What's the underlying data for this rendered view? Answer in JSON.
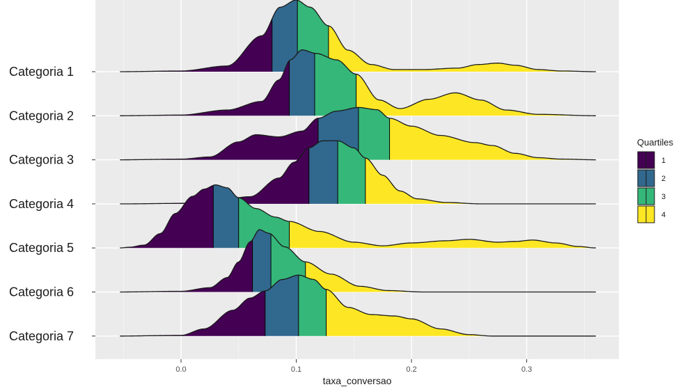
{
  "chart_data": {
    "type": "ridgeline",
    "xlabel": "taxa_conversao",
    "xlim": [
      -0.06,
      0.36
    ],
    "xticks": [
      0.0,
      0.1,
      0.2,
      0.3
    ],
    "xtick_labels": [
      "0.0",
      "0.1",
      "0.2",
      "0.3"
    ],
    "grid": true,
    "legend": {
      "title": "Quartiles",
      "position": "right",
      "items": [
        {
          "label": "1",
          "color": "#440154"
        },
        {
          "label": "2",
          "color": "#31688E"
        },
        {
          "label": "3",
          "color": "#35B779"
        },
        {
          "label": "4",
          "color": "#FDE725"
        }
      ]
    },
    "categories": [
      "Categoria 1",
      "Categoria 2",
      "Categoria 3",
      "Categoria 4",
      "Categoria 5",
      "Categoria 6",
      "Categoria 7"
    ],
    "series": [
      {
        "name": "Categoria 1",
        "quartiles": [
          0.079,
          0.101,
          0.128
        ],
        "density": [
          [
            -0.053,
            0
          ],
          [
            0.0,
            0.01
          ],
          [
            0.04,
            0.08
          ],
          [
            0.07,
            0.5
          ],
          [
            0.086,
            0.9
          ],
          [
            0.1,
            1.0
          ],
          [
            0.112,
            0.9
          ],
          [
            0.128,
            0.64
          ],
          [
            0.145,
            0.3
          ],
          [
            0.165,
            0.1
          ],
          [
            0.185,
            0.03
          ],
          [
            0.21,
            0.03
          ],
          [
            0.24,
            0.05
          ],
          [
            0.258,
            0.1
          ],
          [
            0.275,
            0.12
          ],
          [
            0.29,
            0.09
          ],
          [
            0.31,
            0.03
          ],
          [
            0.33,
            0.01
          ],
          [
            0.36,
            0
          ]
        ]
      },
      {
        "name": "Categoria 2",
        "quartiles": [
          0.094,
          0.116,
          0.152
        ],
        "density": [
          [
            -0.053,
            0
          ],
          [
            0.0,
            0.01
          ],
          [
            0.04,
            0.08
          ],
          [
            0.07,
            0.2
          ],
          [
            0.085,
            0.5
          ],
          [
            0.095,
            0.78
          ],
          [
            0.105,
            0.92
          ],
          [
            0.117,
            0.87
          ],
          [
            0.135,
            0.78
          ],
          [
            0.152,
            0.58
          ],
          [
            0.172,
            0.22
          ],
          [
            0.19,
            0.1
          ],
          [
            0.215,
            0.23
          ],
          [
            0.238,
            0.32
          ],
          [
            0.26,
            0.22
          ],
          [
            0.282,
            0.08
          ],
          [
            0.31,
            0.02
          ],
          [
            0.36,
            0
          ]
        ]
      },
      {
        "name": "Categoria 3",
        "quartiles": [
          0.119,
          0.154,
          0.181
        ],
        "density": [
          [
            -0.053,
            0
          ],
          [
            0.0,
            0.01
          ],
          [
            0.025,
            0.04
          ],
          [
            0.05,
            0.25
          ],
          [
            0.065,
            0.35
          ],
          [
            0.085,
            0.32
          ],
          [
            0.105,
            0.4
          ],
          [
            0.119,
            0.58
          ],
          [
            0.135,
            0.68
          ],
          [
            0.154,
            0.73
          ],
          [
            0.17,
            0.7
          ],
          [
            0.181,
            0.58
          ],
          [
            0.2,
            0.47
          ],
          [
            0.225,
            0.34
          ],
          [
            0.255,
            0.24
          ],
          [
            0.27,
            0.2
          ],
          [
            0.29,
            0.09
          ],
          [
            0.31,
            0.03
          ],
          [
            0.33,
            0.01
          ],
          [
            0.36,
            0
          ]
        ]
      },
      {
        "name": "Categoria 4",
        "quartiles": [
          0.111,
          0.136,
          0.16
        ],
        "density": [
          [
            -0.053,
            0
          ],
          [
            0.02,
            0.01
          ],
          [
            0.06,
            0.1
          ],
          [
            0.085,
            0.36
          ],
          [
            0.098,
            0.58
          ],
          [
            0.111,
            0.78
          ],
          [
            0.123,
            0.88
          ],
          [
            0.136,
            0.88
          ],
          [
            0.15,
            0.78
          ],
          [
            0.16,
            0.64
          ],
          [
            0.175,
            0.4
          ],
          [
            0.19,
            0.18
          ],
          [
            0.205,
            0.07
          ],
          [
            0.23,
            0.02
          ],
          [
            0.26,
            0
          ],
          [
            0.36,
            0
          ]
        ]
      },
      {
        "name": "Categoria 5",
        "quartiles": [
          0.028,
          0.05,
          0.094
        ],
        "density": [
          [
            -0.053,
            0
          ],
          [
            -0.045,
            0.01
          ],
          [
            -0.032,
            0.04
          ],
          [
            -0.018,
            0.2
          ],
          [
            -0.005,
            0.48
          ],
          [
            0.01,
            0.72
          ],
          [
            0.02,
            0.82
          ],
          [
            0.03,
            0.88
          ],
          [
            0.04,
            0.84
          ],
          [
            0.05,
            0.7
          ],
          [
            0.065,
            0.55
          ],
          [
            0.082,
            0.43
          ],
          [
            0.094,
            0.37
          ],
          [
            0.12,
            0.23
          ],
          [
            0.15,
            0.08
          ],
          [
            0.175,
            0.03
          ],
          [
            0.2,
            0.07
          ],
          [
            0.23,
            0.1
          ],
          [
            0.25,
            0.12
          ],
          [
            0.275,
            0.08
          ],
          [
            0.29,
            0.09
          ],
          [
            0.305,
            0.11
          ],
          [
            0.325,
            0.07
          ],
          [
            0.345,
            0.02
          ],
          [
            0.36,
            0
          ]
        ]
      },
      {
        "name": "Categoria 6",
        "quartiles": [
          0.062,
          0.078,
          0.108
        ],
        "density": [
          [
            -0.053,
            0
          ],
          [
            0.0,
            0.01
          ],
          [
            0.025,
            0.06
          ],
          [
            0.04,
            0.2
          ],
          [
            0.05,
            0.42
          ],
          [
            0.06,
            0.7
          ],
          [
            0.068,
            0.87
          ],
          [
            0.076,
            0.82
          ],
          [
            0.09,
            0.63
          ],
          [
            0.108,
            0.42
          ],
          [
            0.13,
            0.25
          ],
          [
            0.155,
            0.08
          ],
          [
            0.18,
            0.02
          ],
          [
            0.21,
            0
          ],
          [
            0.36,
            0
          ]
        ]
      },
      {
        "name": "Categoria 7",
        "quartiles": [
          0.073,
          0.102,
          0.126
        ],
        "density": [
          [
            -0.053,
            0
          ],
          [
            0.0,
            0.01
          ],
          [
            0.02,
            0.1
          ],
          [
            0.045,
            0.36
          ],
          [
            0.06,
            0.53
          ],
          [
            0.073,
            0.63
          ],
          [
            0.088,
            0.79
          ],
          [
            0.102,
            0.85
          ],
          [
            0.115,
            0.79
          ],
          [
            0.126,
            0.65
          ],
          [
            0.145,
            0.4
          ],
          [
            0.165,
            0.3
          ],
          [
            0.185,
            0.28
          ],
          [
            0.2,
            0.24
          ],
          [
            0.225,
            0.1
          ],
          [
            0.25,
            0.02
          ],
          [
            0.27,
            0
          ],
          [
            0.36,
            0
          ]
        ]
      }
    ]
  }
}
